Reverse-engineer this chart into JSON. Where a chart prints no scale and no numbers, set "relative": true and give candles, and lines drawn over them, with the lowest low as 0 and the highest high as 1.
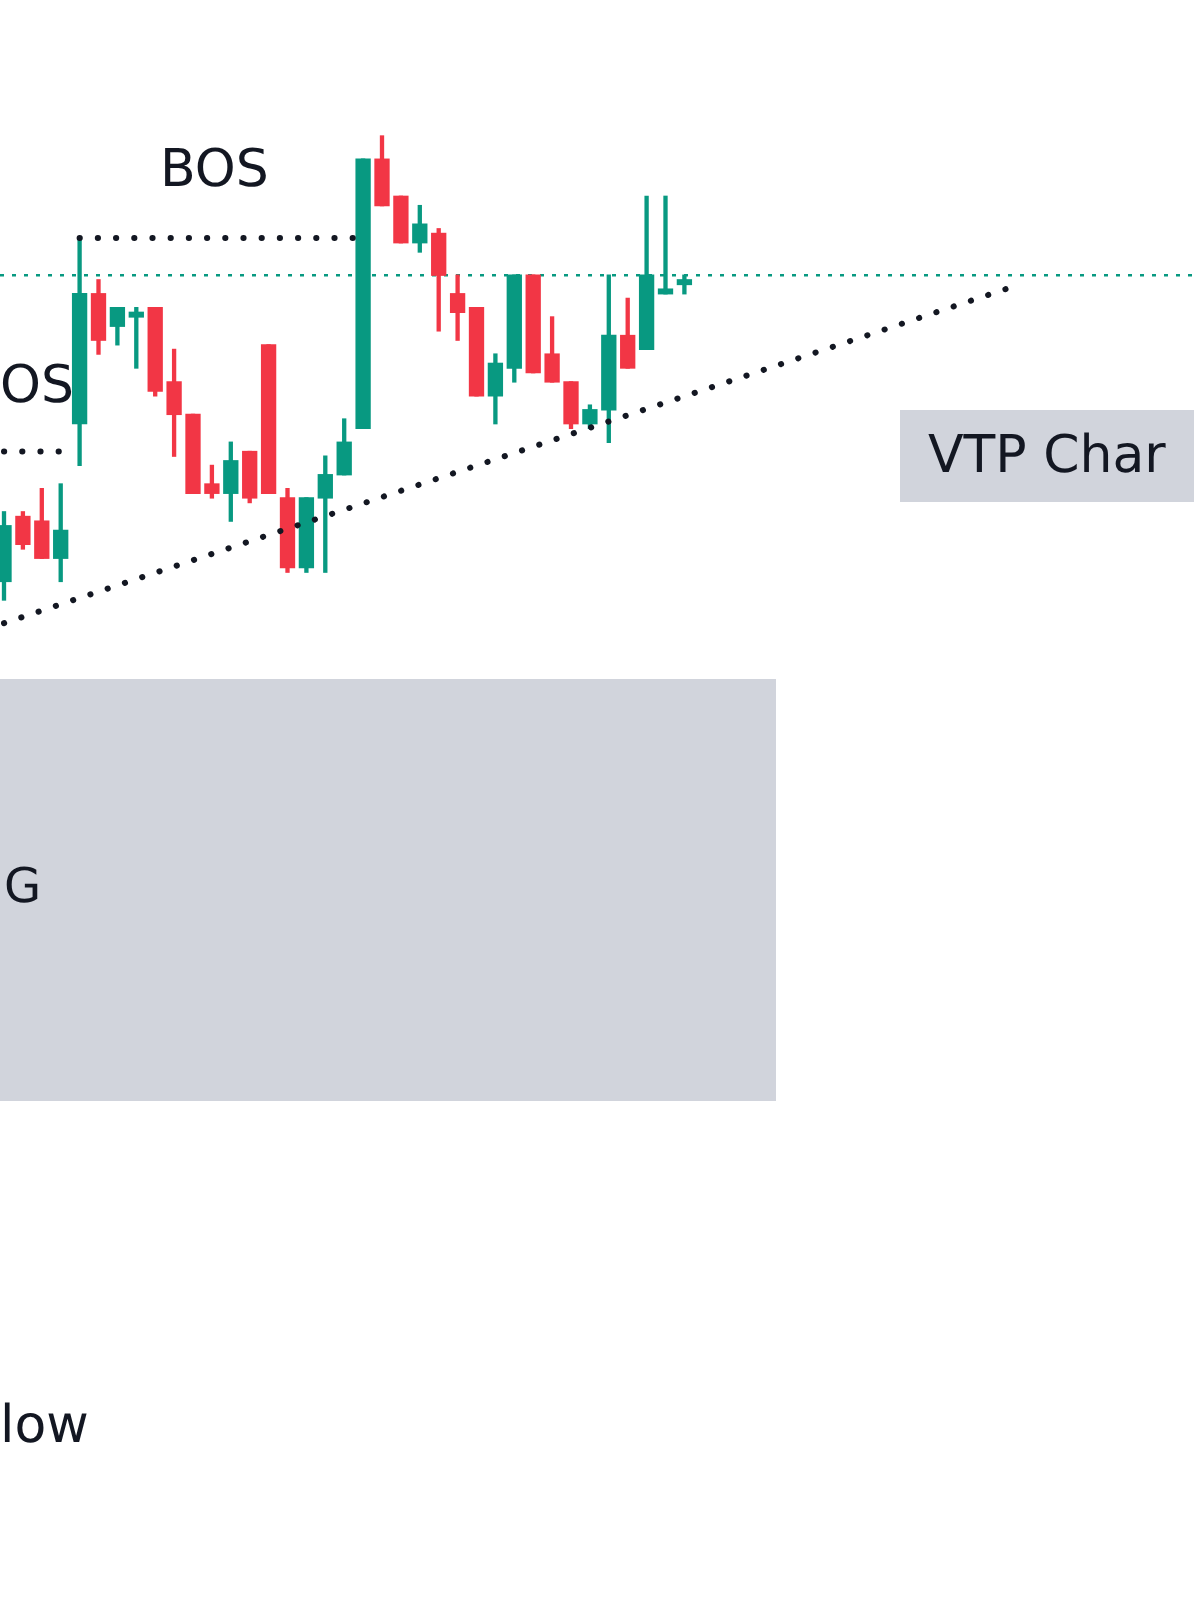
{
  "chart_data": {
    "type": "candlestick",
    "relative": true,
    "categories": [
      null,
      null,
      null,
      null,
      null,
      null,
      null,
      null,
      null,
      null,
      null,
      null,
      null,
      null,
      null,
      null,
      null,
      null,
      null,
      null,
      null,
      null,
      null,
      null,
      null,
      null,
      null,
      null,
      null,
      null,
      null,
      null,
      null,
      null,
      null,
      null,
      null,
      null,
      null,
      null,
      null,
      null,
      null,
      null,
      null,
      null,
      null,
      null,
      null,
      null,
      null,
      null,
      null,
      null,
      null,
      null,
      null,
      null,
      null,
      null,
      null,
      null,
      null,
      null
    ],
    "ohlc": [
      [
        0.04,
        0.19,
        0,
        0.16
      ],
      [
        0.18,
        0.19,
        0.11,
        0.12
      ],
      [
        0.17,
        0.24,
        0.09,
        0.09
      ],
      [
        0.09,
        0.25,
        0.04,
        0.15
      ],
      [
        0.38,
        0.78,
        0.29,
        0.66
      ],
      [
        0.66,
        0.69,
        0.53,
        0.56
      ],
      [
        0.59,
        0.63,
        0.55,
        0.63
      ],
      [
        0.61,
        0.63,
        0.5,
        0.62
      ],
      [
        0.63,
        0.63,
        0.44,
        0.45
      ],
      [
        0.47,
        0.54,
        0.31,
        0.4
      ],
      [
        0.4,
        0.4,
        0.23,
        0.23
      ],
      [
        0.25,
        0.29,
        0.22,
        0.23
      ],
      [
        0.23,
        0.34,
        0.17,
        0.3
      ],
      [
        0.32,
        0.32,
        0.21,
        0.22
      ],
      [
        0.55,
        0.55,
        0.23,
        0.23
      ],
      [
        0.22,
        0.24,
        0.06,
        0.07
      ],
      [
        0.07,
        0.22,
        0.06,
        0.22
      ],
      [
        0.22,
        0.31,
        0.06,
        0.27
      ],
      [
        0.27,
        0.39,
        0.27,
        0.34
      ],
      [
        0.37,
        0.95,
        0.37,
        0.95
      ],
      [
        0.95,
        1,
        0.85,
        0.85
      ],
      [
        0.87,
        0.87,
        0.77,
        0.77
      ],
      [
        0.77,
        0.85,
        0.75,
        0.81
      ],
      [
        0.79,
        0.8,
        0.58,
        0.7
      ],
      [
        0.66,
        0.7,
        0.56,
        0.62
      ],
      [
        0.63,
        0.63,
        0.44,
        0.44
      ],
      [
        0.44,
        0.53,
        0.38,
        0.51
      ],
      [
        0.5,
        0.7,
        0.47,
        0.7
      ],
      [
        0.7,
        0.7,
        0.49,
        0.49
      ],
      [
        0.53,
        0.61,
        0.47,
        0.47
      ],
      [
        0.47,
        0.47,
        0.37,
        0.38
      ],
      [
        0.38,
        0.42,
        0.37,
        0.41
      ],
      [
        0.41,
        0.7,
        0.34,
        0.57
      ],
      [
        0.57,
        0.65,
        0.5,
        0.5
      ],
      [
        0.54,
        0.87,
        0.54,
        0.7
      ],
      [
        0.66,
        0.87,
        0.66,
        0.67
      ],
      [
        0.68,
        0.7,
        0.66,
        0.69
      ],
      null,
      null,
      null,
      null,
      null,
      null,
      null,
      null,
      null,
      null,
      null,
      null,
      null,
      null,
      null,
      null,
      null,
      null,
      null,
      null,
      null,
      null,
      null,
      null,
      null,
      null,
      null
    ],
    "colors": [
      "#089981",
      "#f23645",
      "#f23645",
      "#089981",
      "#089981",
      "#f23645",
      "#089981",
      "#089981",
      "#f23645",
      "#f23645",
      "#f23645",
      "#f23645",
      "#089981",
      "#f23645",
      "#f23645",
      "#f23645",
      "#089981",
      "#089981",
      "#089981",
      "#089981",
      "#f23645",
      "#f23645",
      "#089981",
      "#f23645",
      "#f23645",
      "#f23645",
      "#089981",
      "#089981",
      "#f23645",
      "#f23645",
      "#f23645",
      "#089981",
      "#089981",
      "#f23645",
      "#089981",
      "#089981",
      "#089981",
      null,
      null,
      null,
      null,
      null,
      null,
      null,
      null,
      null,
      null,
      null,
      null,
      null,
      null,
      null,
      null,
      null,
      null,
      null,
      null,
      null,
      null,
      null,
      null,
      null,
      null,
      null
    ],
    "series": [
      {
        "type": "line",
        "values": [
          -0.05,
          null,
          null,
          null,
          null,
          null,
          null,
          null,
          null,
          null,
          null,
          null,
          null,
          null,
          null,
          null,
          null,
          null,
          null,
          null,
          null,
          null,
          null,
          null,
          null,
          null,
          null,
          null,
          null,
          null,
          null,
          null,
          null,
          null,
          null,
          null,
          null,
          null,
          null,
          null,
          null,
          null,
          null,
          null,
          null,
          null,
          null,
          null,
          null,
          null,
          null,
          null,
          null,
          0.67,
          null,
          null,
          null,
          null,
          null,
          null,
          null,
          null,
          null,
          null
        ],
        "color": "#131722",
        "line_style": "dotted"
      },
      {
        "type": "line",
        "values": [
          null,
          null,
          null,
          null,
          0.78,
          null,
          null,
          null,
          null,
          null,
          null,
          null,
          null,
          null,
          null,
          null,
          null,
          null,
          null,
          0.78,
          null,
          null,
          null,
          null,
          null,
          null,
          null,
          null,
          null,
          null,
          null,
          null,
          null,
          null,
          null,
          null,
          null,
          null,
          null,
          null,
          null,
          null,
          null,
          null,
          null,
          null,
          null,
          null,
          null,
          null,
          null,
          null,
          null,
          null,
          null,
          null,
          null,
          null,
          null,
          null,
          null,
          null,
          null,
          null
        ],
        "color": "#131722",
        "line_style": "dotted"
      },
      {
        "type": "line",
        "values": [
          0.32,
          null,
          null,
          0.32,
          null,
          null,
          null,
          null,
          null,
          null,
          null,
          null,
          null,
          null,
          null,
          null,
          null,
          null,
          null,
          null,
          null,
          null,
          null,
          null,
          null,
          null,
          null,
          null,
          null,
          null,
          null,
          null,
          null,
          null,
          null,
          null,
          null,
          null,
          null,
          null,
          null,
          null,
          null,
          null,
          null,
          null,
          null,
          null,
          null,
          null,
          null,
          null,
          null,
          null,
          null,
          null,
          null,
          null,
          null,
          null,
          null,
          null,
          null,
          null
        ],
        "color": "#131722",
        "line_style": "dotted"
      }
    ],
    "ref_lines": [
      {
        "axis": "y",
        "value": 0.7,
        "color": "#089981",
        "line_style": "dotted"
      }
    ],
    "bands": [
      {
        "axis": "y",
        "from": -1.08,
        "to": -0.17,
        "label": "G",
        "color": "#d1d4dc"
      }
    ],
    "annotations": [
      "BOS",
      "OS",
      "VTP Char",
      "low"
    ]
  }
}
